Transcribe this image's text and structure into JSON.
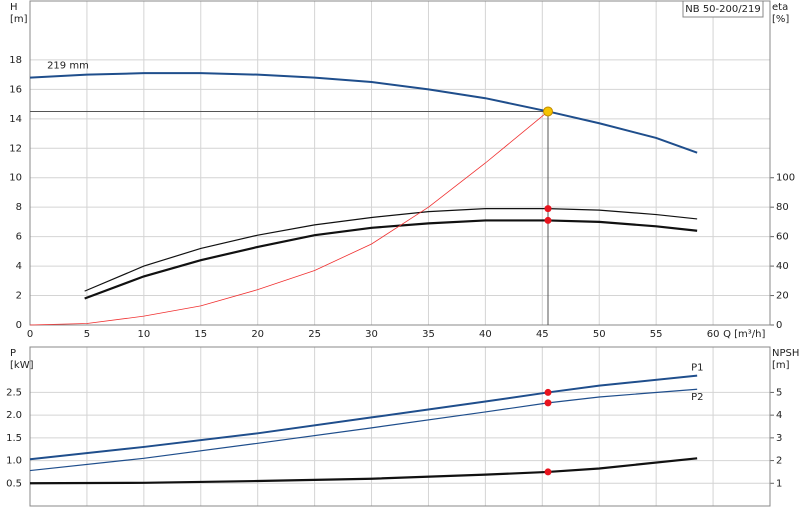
{
  "chart_data": [
    {
      "type": "line",
      "title": "NB 50-200/219",
      "y_label": "H",
      "y_unit": "[m]",
      "y2_label": "eta",
      "y2_unit": "[%]",
      "x_label": "Q [m³/h]",
      "annotation": "219 mm",
      "xlim": [
        0,
        65
      ],
      "xticks": [
        0,
        5,
        10,
        15,
        20,
        25,
        30,
        35,
        40,
        45,
        50,
        55,
        60
      ],
      "ylim": [
        0,
        22
      ],
      "yticks": [
        0,
        2,
        4,
        6,
        8,
        10,
        12,
        14,
        16,
        18
      ],
      "y2lim": [
        0,
        220
      ],
      "y2ticks": [
        0,
        20,
        40,
        60,
        80,
        100
      ],
      "grid": true,
      "highlight_x": 45.5,
      "duty_point": {
        "x": 45.5,
        "y": 14.5
      },
      "series": [
        {
          "color": "#1f4e8c",
          "width": 2,
          "x": [
            0,
            5,
            10,
            15,
            20,
            25,
            30,
            35,
            40,
            45.5,
            50,
            55,
            58.6
          ],
          "values": [
            16.8,
            17.0,
            17.1,
            17.1,
            17.0,
            16.8,
            16.5,
            16.0,
            15.4,
            14.5,
            13.7,
            12.7,
            11.7
          ]
        },
        {
          "color": "#111111",
          "width": 1.2,
          "axis": "y2",
          "marker": true,
          "x": [
            4.8,
            10,
            15,
            20,
            25,
            30,
            35,
            40,
            45.5,
            50,
            55,
            58.6
          ],
          "values": [
            23,
            40,
            52,
            61,
            68,
            73,
            77,
            79,
            79,
            78,
            75,
            72
          ]
        },
        {
          "color": "#111111",
          "width": 2.2,
          "axis": "y2",
          "marker": true,
          "x": [
            4.8,
            10,
            15,
            20,
            25,
            30,
            35,
            40,
            45.5,
            50,
            55,
            58.6
          ],
          "values": [
            18,
            33,
            44,
            53,
            61,
            66,
            69,
            71,
            71,
            70,
            67,
            64
          ]
        },
        {
          "color": "#f03030",
          "width": 0.8,
          "x": [
            0,
            5,
            10,
            15,
            20,
            25,
            30,
            35,
            40,
            45.5
          ],
          "values": [
            0,
            0.1,
            0.6,
            1.3,
            2.4,
            3.7,
            5.5,
            8.0,
            11.0,
            14.5
          ]
        }
      ]
    },
    {
      "type": "line",
      "y_label": "P",
      "y_unit": "[kW]",
      "y2_label": "NPSH",
      "y2_unit": "[m]",
      "xlim": [
        0,
        65
      ],
      "xticks": [
        0,
        5,
        10,
        15,
        20,
        25,
        30,
        35,
        40,
        45,
        50,
        55,
        60
      ],
      "ylim": [
        0,
        3.5
      ],
      "yticks": [
        0.5,
        {
          "value": 1,
          "label": "1.0"
        },
        1.5,
        {
          "value": 2,
          "label": "2.0"
        },
        2.5
      ],
      "y2lim": [
        0,
        7
      ],
      "y2ticks": [
        1,
        2,
        3,
        4,
        5
      ],
      "grid": true,
      "highlight_x": 45.5,
      "series": [
        {
          "name": "P1",
          "color": "#1f4e8c",
          "width": 2,
          "marker": true,
          "x": [
            0,
            10,
            20,
            30,
            40,
            45.5,
            50,
            58.6
          ],
          "values": [
            1.03,
            1.3,
            1.6,
            1.95,
            2.3,
            2.5,
            2.65,
            2.87
          ]
        },
        {
          "name": "P2",
          "color": "#1f4e8c",
          "width": 1.2,
          "marker": true,
          "x": [
            0,
            10,
            20,
            30,
            40,
            45.5,
            50,
            58.6
          ],
          "values": [
            0.78,
            1.05,
            1.38,
            1.72,
            2.07,
            2.27,
            2.4,
            2.57
          ]
        },
        {
          "color": "#111111",
          "width": 2.2,
          "axis": "y2",
          "marker": true,
          "x": [
            0,
            10,
            20,
            30,
            40,
            45.5,
            50,
            58.6
          ],
          "values": [
            1.0,
            1.02,
            1.1,
            1.2,
            1.38,
            1.5,
            1.65,
            2.1
          ]
        }
      ]
    }
  ]
}
